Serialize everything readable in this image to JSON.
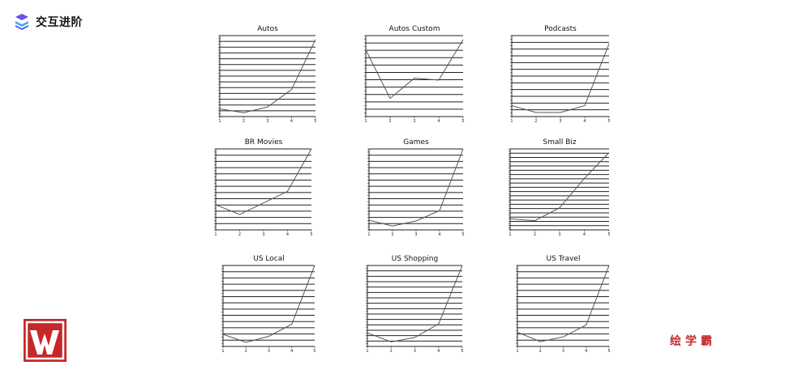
{
  "header": {
    "brand_text": "交互进阶",
    "logo_icon": "layers-icon"
  },
  "footer": {
    "brand_text": "绘学霸",
    "logo_icon": "w-logo-icon",
    "accent": "#c62828"
  },
  "chart_data": [
    {
      "type": "line",
      "title": "Autos",
      "x": [
        1,
        2,
        3,
        4,
        5
      ],
      "values": [
        2.0,
        1.0,
        2.5,
        7.0,
        20.0
      ],
      "ylim": [
        0,
        21
      ],
      "grid": "horizontal"
    },
    {
      "type": "line",
      "title": "Autos Custom",
      "x": [
        1,
        2,
        3,
        4,
        5
      ],
      "values": [
        16.5,
        4.5,
        9.5,
        9.0,
        19.0
      ],
      "ylim": [
        0,
        20
      ],
      "grid": "horizontal"
    },
    {
      "type": "line",
      "title": "Podcasts",
      "x": [
        1,
        2,
        3,
        4,
        5
      ],
      "values": [
        2.7,
        1.0,
        1.0,
        2.7,
        18.0
      ],
      "ylim": [
        0,
        20
      ],
      "grid": "horizontal"
    },
    {
      "type": "line",
      "title": "BR Movies",
      "x": [
        1,
        2,
        3,
        4,
        5
      ],
      "values": [
        6.5,
        4.0,
        7.0,
        10.0,
        21.0
      ],
      "ylim": [
        0,
        21
      ],
      "grid": "horizontal"
    },
    {
      "type": "line",
      "title": "Games",
      "x": [
        1,
        2,
        3,
        4,
        5
      ],
      "values": [
        2.5,
        1.0,
        2.3,
        5.0,
        21.0
      ],
      "ylim": [
        0,
        21
      ],
      "grid": "horizontal"
    },
    {
      "type": "line",
      "title": "Small Biz",
      "x": [
        1,
        2,
        3,
        4,
        5
      ],
      "values": [
        3.0,
        2.5,
        6.0,
        14.0,
        21.0
      ],
      "ylim": [
        0,
        22
      ],
      "grid": "horizontal"
    },
    {
      "type": "line",
      "title": "US Local",
      "x": [
        1,
        2,
        3,
        4,
        5
      ],
      "values": [
        3.0,
        1.0,
        2.5,
        5.5,
        20.0
      ],
      "ylim": [
        0,
        20
      ],
      "grid": "horizontal"
    },
    {
      "type": "line",
      "title": "US Shopping",
      "x": [
        1,
        2,
        3,
        4,
        5
      ],
      "values": [
        3.0,
        1.0,
        2.0,
        5.0,
        18.0
      ],
      "ylim": [
        0,
        18
      ],
      "grid": "horizontal"
    },
    {
      "type": "line",
      "title": "US Travel",
      "x": [
        1,
        2,
        3,
        4,
        5
      ],
      "values": [
        3.0,
        1.0,
        2.0,
        4.5,
        17.0
      ],
      "ylim": [
        0,
        17
      ],
      "grid": "horizontal"
    }
  ]
}
